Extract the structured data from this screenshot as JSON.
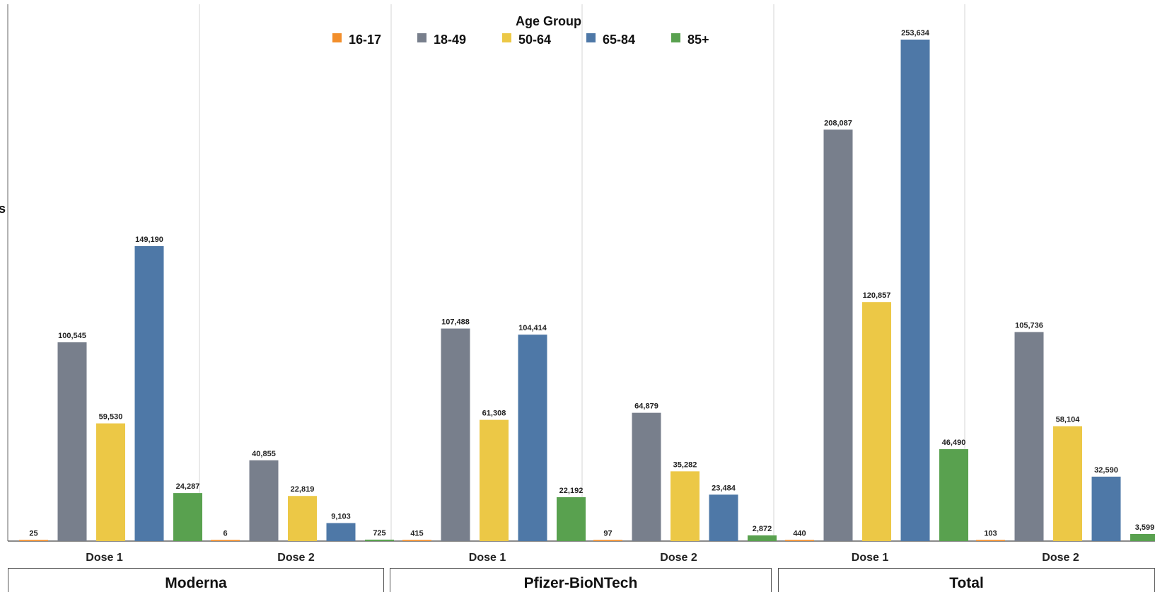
{
  "chart_data": {
    "type": "bar",
    "legend_title": "Age Group",
    "legend_placement": "top-center",
    "grid": false,
    "ylim": [
      0,
      260000
    ],
    "series": [
      {
        "name": "16-17",
        "color": "#f28e2b",
        "values": [
          25,
          6,
          415,
          97,
          440,
          103
        ]
      },
      {
        "name": "18-49",
        "color": "#787f8c",
        "values": [
          100545,
          40855,
          107488,
          64879,
          208087,
          105736
        ]
      },
      {
        "name": "50-64",
        "color": "#ecc846",
        "values": [
          59530,
          22819,
          61308,
          35282,
          120857,
          58104
        ]
      },
      {
        "name": "65-84",
        "color": "#4e78a7",
        "values": [
          149190,
          9103,
          104414,
          23484,
          253634,
          32590
        ]
      },
      {
        "name": "85+",
        "color": "#59a14f",
        "values": [
          24287,
          725,
          22192,
          2872,
          46490,
          3599
        ]
      }
    ],
    "panels": [
      {
        "vaccine": "Moderna",
        "dose": "Dose 1"
      },
      {
        "vaccine": "Moderna",
        "dose": "Dose 2"
      },
      {
        "vaccine": "Pfizer-BioNTech",
        "dose": "Dose 1"
      },
      {
        "vaccine": "Pfizer-BioNTech",
        "dose": "Dose 2"
      },
      {
        "vaccine": "Total",
        "dose": "Dose 1"
      },
      {
        "vaccine": "Total",
        "dose": "Dose 2"
      }
    ],
    "vaccine_groups": [
      "Moderna",
      "Pfizer-BioNTech",
      "Total"
    ],
    "cut_off_ylabel_fragment": "s"
  }
}
